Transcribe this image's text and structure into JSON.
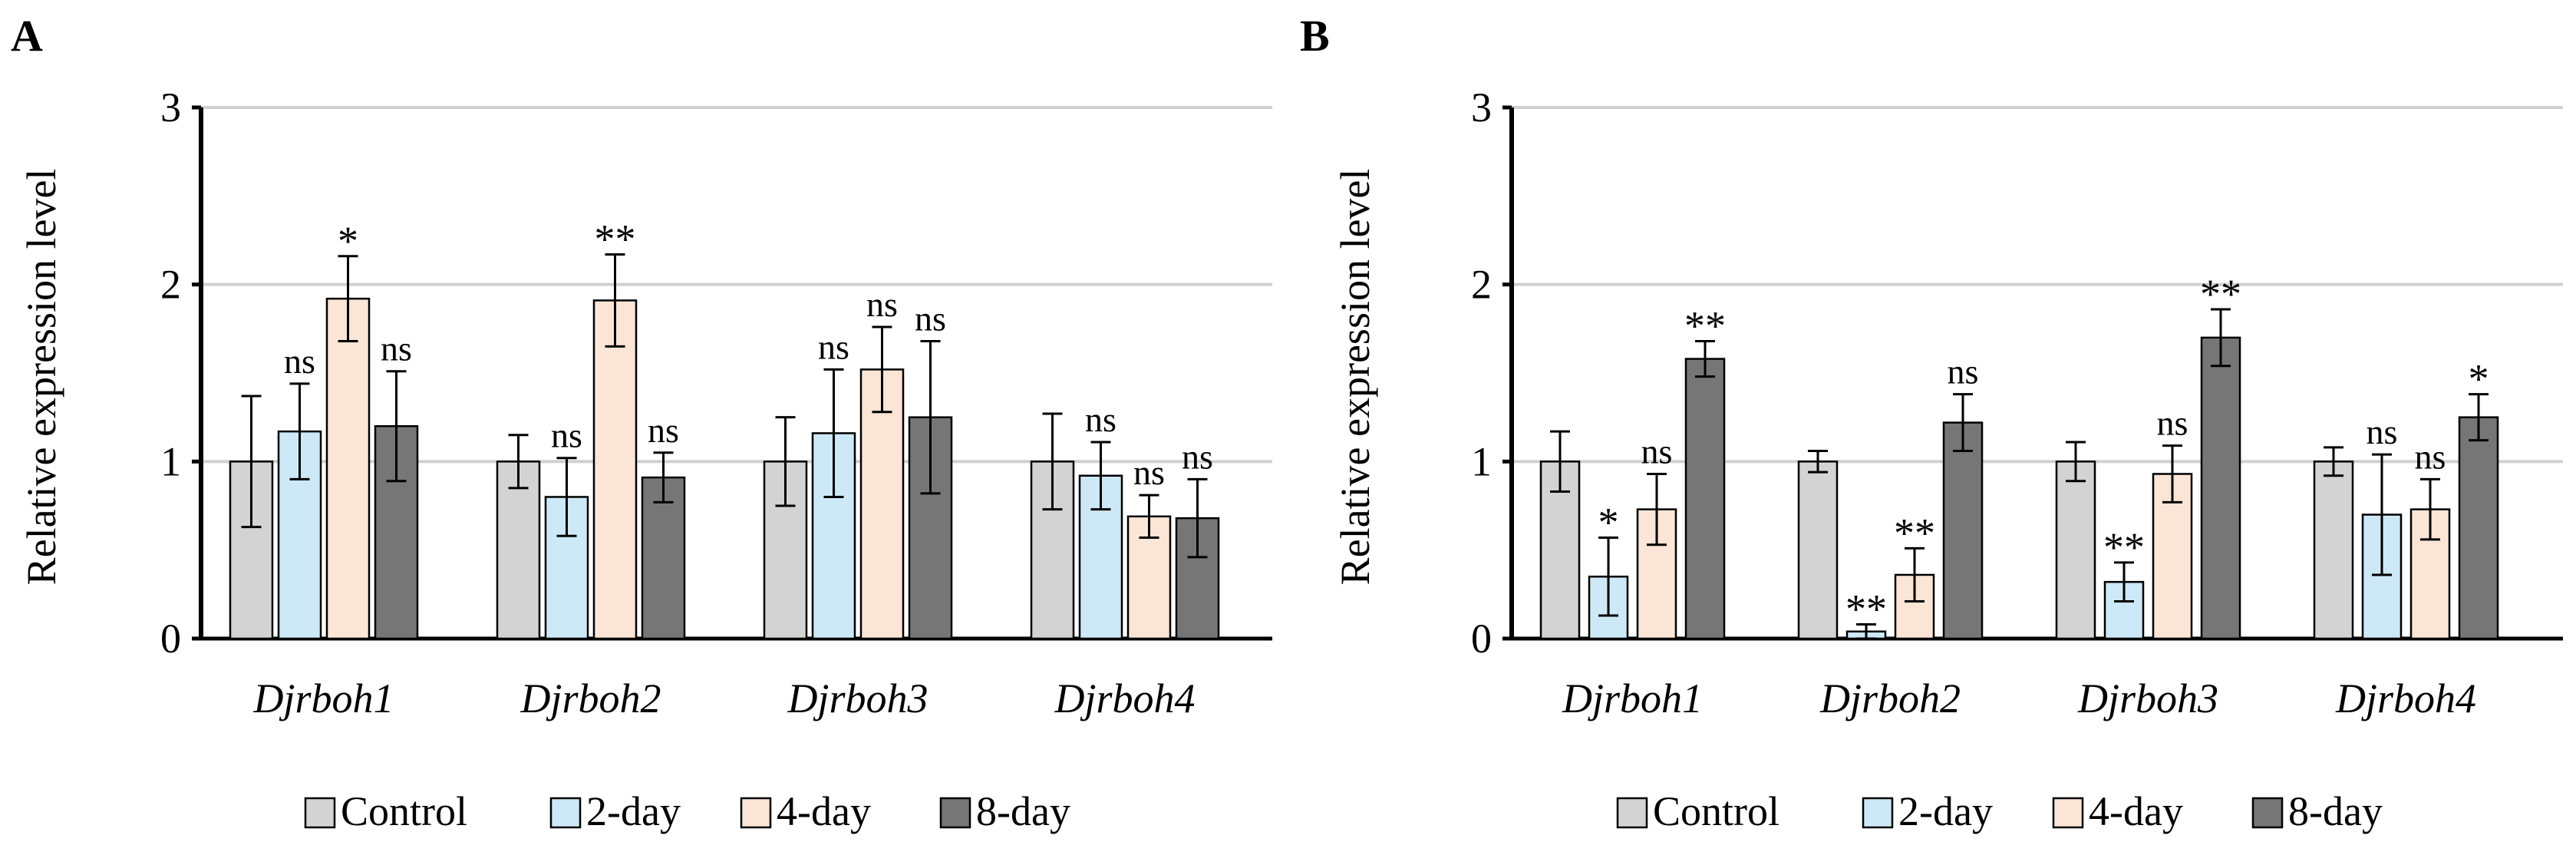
{
  "figure": {
    "panels": [
      "A",
      "B"
    ]
  },
  "colors": {
    "Control": "#d3d3d3",
    "2-day": "#cde8f6",
    "4-day": "#fbe5d6",
    "8-day": "#767676",
    "edge": "#000000",
    "grid": "#d0d0d0"
  },
  "chart_data": [
    {
      "panel": "A",
      "type": "bar",
      "title": "",
      "xlabel": "",
      "ylabel": "Relative expression level",
      "ylim": [
        0,
        3
      ],
      "yticks": [
        "0",
        "1",
        "2",
        "3"
      ],
      "grid": true,
      "categories": [
        "Djrboh1",
        "Djrboh2",
        "Djrboh3",
        "Djrboh4"
      ],
      "legend": [
        "Control",
        "2-day",
        "4-day",
        "8-day"
      ],
      "legend_position": "bottom",
      "series": [
        {
          "name": "Control",
          "values": [
            1.0,
            1.0,
            1.0,
            1.0
          ],
          "errors": [
            0.37,
            0.15,
            0.25,
            0.27
          ],
          "labels": [
            "",
            "",
            "",
            ""
          ]
        },
        {
          "name": "2-day",
          "values": [
            1.17,
            0.8,
            1.16,
            0.92
          ],
          "errors": [
            0.27,
            0.22,
            0.36,
            0.19
          ],
          "labels": [
            "ns",
            "ns",
            "ns",
            "ns"
          ]
        },
        {
          "name": "4-day",
          "values": [
            1.92,
            1.91,
            1.52,
            0.69
          ],
          "errors": [
            0.24,
            0.26,
            0.24,
            0.12
          ],
          "labels": [
            "*",
            "**",
            "ns",
            "ns"
          ]
        },
        {
          "name": "8-day",
          "values": [
            1.2,
            0.91,
            1.25,
            0.68
          ],
          "errors": [
            0.31,
            0.14,
            0.43,
            0.22
          ],
          "labels": [
            "ns",
            "ns",
            "ns",
            "ns"
          ]
        }
      ]
    },
    {
      "panel": "B",
      "type": "bar",
      "title": "",
      "xlabel": "",
      "ylabel": "Relative expression level",
      "ylim": [
        0,
        3
      ],
      "yticks": [
        "0",
        "1",
        "2",
        "3"
      ],
      "grid": true,
      "categories": [
        "Djrboh1",
        "Djrboh2",
        "Djrboh3",
        "Djrboh4"
      ],
      "legend": [
        "Control",
        "2-day",
        "4-day",
        "8-day"
      ],
      "legend_position": "bottom",
      "series": [
        {
          "name": "Control",
          "values": [
            1.0,
            1.0,
            1.0,
            1.0
          ],
          "errors": [
            0.17,
            0.06,
            0.11,
            0.08
          ],
          "labels": [
            "",
            "",
            "",
            ""
          ]
        },
        {
          "name": "2-day",
          "values": [
            0.35,
            0.04,
            0.32,
            0.7
          ],
          "errors": [
            0.22,
            0.04,
            0.11,
            0.34
          ],
          "labels": [
            "*",
            "**",
            "**",
            "ns"
          ]
        },
        {
          "name": "4-day",
          "values": [
            0.73,
            0.36,
            0.93,
            0.73
          ],
          "errors": [
            0.2,
            0.15,
            0.16,
            0.17
          ],
          "labels": [
            "ns",
            "**",
            "ns",
            "ns"
          ]
        },
        {
          "name": "8-day",
          "values": [
            1.58,
            1.22,
            1.7,
            1.25
          ],
          "errors": [
            0.1,
            0.16,
            0.16,
            0.13
          ],
          "labels": [
            "**",
            "ns",
            "**",
            "*"
          ]
        }
      ]
    }
  ]
}
